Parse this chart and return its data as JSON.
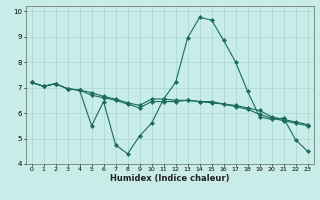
{
  "xlabel": "Humidex (Indice chaleur)",
  "xlim": [
    -0.5,
    23.5
  ],
  "ylim": [
    4,
    10.2
  ],
  "yticks": [
    4,
    5,
    6,
    7,
    8,
    9,
    10
  ],
  "xticks": [
    0,
    1,
    2,
    3,
    4,
    5,
    6,
    7,
    8,
    9,
    10,
    11,
    12,
    13,
    14,
    15,
    16,
    17,
    18,
    19,
    20,
    21,
    22,
    23
  ],
  "bg_color": "#c8ede8",
  "grid_color": "#a8d8d0",
  "line_color": "#1a6b5a",
  "series": [
    [
      7.2,
      7.05,
      7.15,
      6.95,
      6.9,
      5.5,
      6.45,
      4.75,
      4.4,
      5.1,
      5.6,
      6.55,
      7.2,
      8.95,
      9.75,
      9.65,
      8.85,
      8.0,
      6.85,
      5.85,
      5.75,
      5.8,
      4.95,
      4.5
    ],
    [
      7.2,
      7.05,
      7.15,
      6.95,
      6.9,
      6.8,
      6.65,
      6.55,
      6.4,
      6.3,
      6.55,
      6.55,
      6.5,
      6.5,
      6.45,
      6.45,
      6.35,
      6.3,
      6.2,
      6.1,
      5.85,
      5.75,
      5.65,
      5.55
    ],
    [
      7.2,
      7.05,
      7.15,
      6.95,
      6.9,
      6.7,
      6.6,
      6.5,
      6.35,
      6.2,
      6.45,
      6.45,
      6.45,
      6.5,
      6.45,
      6.4,
      6.35,
      6.25,
      6.15,
      5.95,
      5.8,
      5.7,
      5.6,
      5.5
    ]
  ]
}
